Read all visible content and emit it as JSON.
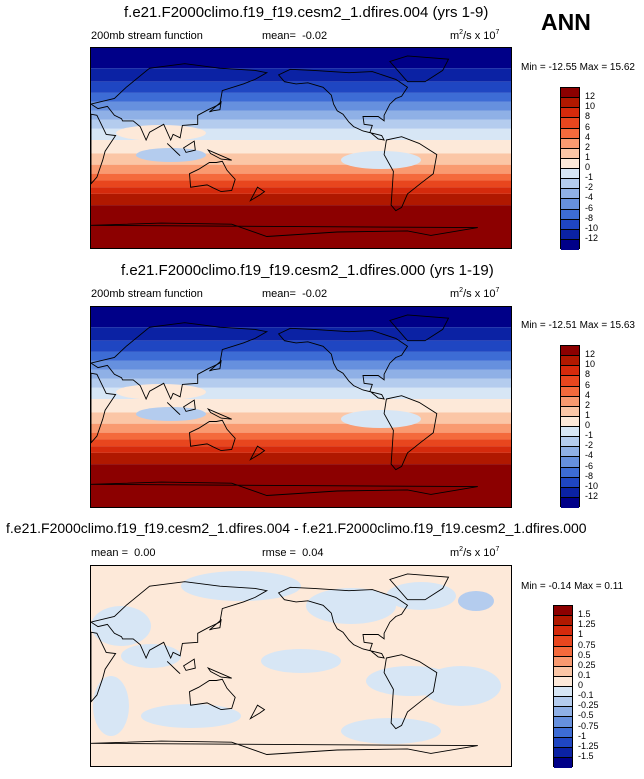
{
  "header": {
    "season": "ANN"
  },
  "panels": [
    {
      "title": "f.e21.F2000climo.f19_f19.cesm2_1.dfires.004 (yrs 1-9)",
      "left_label": "200mb stream function",
      "mean_label": "mean=",
      "mean_value": "-0.02",
      "units": "m",
      "units_sup": "2",
      "units_rest": "/s x 10",
      "units_sup2": "7",
      "range_text": "Min = -12.55 Max =  15.62",
      "colorbar": {
        "labels": [
          "12",
          "10",
          "8",
          "6",
          "4",
          "2",
          "1",
          "0",
          "-1",
          "-2",
          "-4",
          "-6",
          "-8",
          "-10",
          "-12"
        ],
        "colors": [
          "#8c0000",
          "#b01800",
          "#d52a0c",
          "#e8461e",
          "#f46a3c",
          "#f99a70",
          "#fbc6a6",
          "#fde9d9",
          "#d7e6f5",
          "#b4ccee",
          "#8fb0e6",
          "#6690de",
          "#3d6cd5",
          "#1f46c2",
          "#0b22a4",
          "#000088"
        ]
      }
    },
    {
      "title": "f.e21.F2000climo.f19_f19.cesm2_1.dfires.000 (yrs 1-19)",
      "left_label": "200mb stream function",
      "mean_label": "mean=",
      "mean_value": "-0.02",
      "units": "m",
      "units_sup": "2",
      "units_rest": "/s x 10",
      "units_sup2": "7",
      "range_text": "Min = -12.51 Max =  15.63",
      "colorbar": {
        "labels": [
          "12",
          "10",
          "8",
          "6",
          "4",
          "2",
          "1",
          "0",
          "-1",
          "-2",
          "-4",
          "-6",
          "-8",
          "-10",
          "-12"
        ],
        "colors": [
          "#8c0000",
          "#b01800",
          "#d52a0c",
          "#e8461e",
          "#f46a3c",
          "#f99a70",
          "#fbc6a6",
          "#fde9d9",
          "#d7e6f5",
          "#b4ccee",
          "#8fb0e6",
          "#6690de",
          "#3d6cd5",
          "#1f46c2",
          "#0b22a4",
          "#000088"
        ]
      }
    },
    {
      "title": "f.e21.F2000climo.f19_f19.cesm2_1.dfires.004 - f.e21.F2000climo.f19_f19.cesm2_1.dfires.000",
      "left_label": "mean =",
      "left_value": "0.00",
      "mean_label": "rmse =",
      "mean_value": "0.04",
      "units": "m",
      "units_sup": "2",
      "units_rest": "/s x 10",
      "units_sup2": "7",
      "range_text": "Min = -0.14 Max =  0.11",
      "colorbar": {
        "labels": [
          "1.5",
          "1.25",
          "1",
          "0.75",
          "0.5",
          "0.25",
          "0.1",
          "0",
          "-0.1",
          "-0.25",
          "-0.5",
          "-0.75",
          "-1",
          "-1.25",
          "-1.5"
        ],
        "colors": [
          "#8c0000",
          "#b01800",
          "#d52a0c",
          "#e8461e",
          "#f46a3c",
          "#f99a70",
          "#fbc6a6",
          "#fde9d9",
          "#d7e6f5",
          "#b4ccee",
          "#8fb0e6",
          "#6690de",
          "#3d6cd5",
          "#1f46c2",
          "#0b22a4",
          "#000088"
        ]
      }
    }
  ],
  "chart_data": [
    {
      "type": "heatmap",
      "title": "f.e21.F2000climo.f19_f19.cesm2_1.dfires.004 (yrs 1-9)",
      "field": "200mb stream function",
      "units": "m2/s x 10^7",
      "mean": -0.02,
      "min": -12.55,
      "max": 15.62,
      "levels": [
        -12,
        -10,
        -8,
        -6,
        -4,
        -2,
        -1,
        0,
        1,
        2,
        4,
        6,
        8,
        10,
        12
      ],
      "zonal_bands_north_to_south": [
        -12,
        -10,
        -8,
        -6,
        -4,
        -2,
        -1,
        0,
        1,
        2,
        4,
        6,
        8,
        10,
        12,
        13
      ]
    },
    {
      "type": "heatmap",
      "title": "f.e21.F2000climo.f19_f19.cesm2_1.dfires.000 (yrs 1-19)",
      "field": "200mb stream function",
      "units": "m2/s x 10^7",
      "mean": -0.02,
      "min": -12.51,
      "max": 15.63,
      "levels": [
        -12,
        -10,
        -8,
        -6,
        -4,
        -2,
        -1,
        0,
        1,
        2,
        4,
        6,
        8,
        10,
        12
      ],
      "zonal_bands_north_to_south": [
        -12,
        -10,
        -8,
        -6,
        -4,
        -2,
        -1,
        0,
        1,
        2,
        4,
        6,
        8,
        10,
        12,
        13
      ]
    },
    {
      "type": "heatmap",
      "title": "f.e21.F2000climo.f19_f19.cesm2_1.dfires.004 - f.e21.F2000climo.f19_f19.cesm2_1.dfires.000",
      "units": "m2/s x 10^7",
      "mean": 0.0,
      "rmse": 0.04,
      "min": -0.14,
      "max": 0.11,
      "levels": [
        -1.5,
        -1.25,
        -1,
        -0.75,
        -0.5,
        -0.25,
        -0.1,
        0,
        0.1,
        0.25,
        0.5,
        0.75,
        1,
        1.25,
        1.5
      ]
    }
  ]
}
